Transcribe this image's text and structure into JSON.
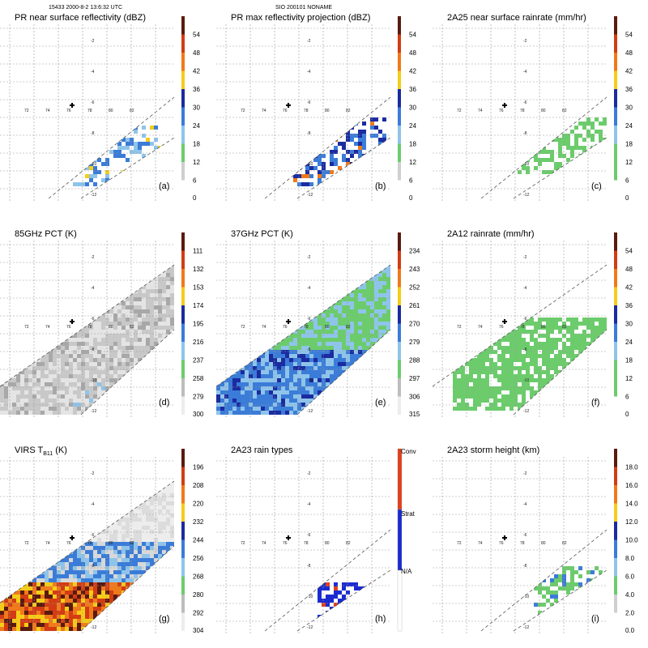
{
  "header": {
    "left": "15433 2000-8-2 13:6:32 UTC",
    "center": "SIO 200101 NONAME"
  },
  "colors": {
    "grid": "#9a9a9a",
    "accent_cross": "#000000"
  },
  "chart_data": [
    {
      "type": "heatmap",
      "title": "PR near surface reflectivity (dBZ)",
      "title_sub": "",
      "title_suffix": "",
      "label": "(a)",
      "colorbar": {
        "ticks": [
          "54",
          "48",
          "42",
          "36",
          "30",
          "24",
          "18",
          "12",
          "6",
          "0"
        ],
        "colors": [
          "#5a1a10",
          "#d23c14",
          "#ef7a1c",
          "#f5cd18",
          "#1b2ba0",
          "#3b7cd8",
          "#8fc4ea",
          "#6ccc6c",
          "#cfcfcf",
          "#ffffff"
        ]
      },
      "lon_ticks": [
        "72",
        "74",
        "76",
        "78",
        "80",
        "82"
      ],
      "lat_ticks": [
        "-2",
        "-4",
        "-6",
        "-8",
        "-10",
        "-12"
      ],
      "swath": "narrow",
      "field": "reflect"
    },
    {
      "type": "heatmap",
      "title": "PR max reflectivity projection (dBZ)",
      "title_sub": "",
      "title_suffix": "",
      "label": "(b)",
      "colorbar": {
        "ticks": [
          "54",
          "48",
          "42",
          "36",
          "30",
          "24",
          "18",
          "12",
          "6",
          "0"
        ],
        "colors": [
          "#5a1a10",
          "#d23c14",
          "#ef7a1c",
          "#f5cd18",
          "#1b2ba0",
          "#3b7cd8",
          "#8fc4ea",
          "#6ccc6c",
          "#cfcfcf",
          "#ffffff"
        ]
      },
      "lon_ticks": [
        "72",
        "74",
        "76",
        "78",
        "80",
        "82"
      ],
      "lat_ticks": [
        "-2",
        "-4",
        "-6",
        "-8",
        "-10",
        "-12"
      ],
      "swath": "narrow",
      "field": "maxref"
    },
    {
      "type": "heatmap",
      "title": "2A25 near surface rainrate (mm/hr)",
      "title_sub": "",
      "title_suffix": "",
      "label": "(c)",
      "colorbar": {
        "ticks": [
          "54",
          "48",
          "42",
          "36",
          "30",
          "24",
          "18",
          "12",
          "6",
          "0"
        ],
        "colors": [
          "#5a1a10",
          "#d23c14",
          "#ef7a1c",
          "#f5cd18",
          "#1b2ba0",
          "#3b7cd8",
          "#8fc4ea",
          "#6ccc6c",
          "#6ccc6c",
          "#ffffff"
        ]
      },
      "lon_ticks": [
        "72",
        "74",
        "76",
        "78",
        "80",
        "82"
      ],
      "lat_ticks": [
        "-2",
        "-4",
        "-6",
        "-8",
        "-10",
        "-12"
      ],
      "swath": "narrow",
      "field": "rainlight"
    },
    {
      "type": "heatmap",
      "title": "85GHz PCT (K)",
      "title_sub": "",
      "title_suffix": "",
      "label": "(d)",
      "colorbar": {
        "ticks": [
          "111",
          "132",
          "153",
          "174",
          "195",
          "216",
          "237",
          "258",
          "279",
          "300"
        ],
        "colors": [
          "#5a1a10",
          "#d23c14",
          "#ef7a1c",
          "#f5cd18",
          "#1b2ba0",
          "#3b7cd8",
          "#8fc4ea",
          "#6ccc6c",
          "#bdbdbd",
          "#ededed"
        ]
      },
      "lon_ticks": [
        "72",
        "74",
        "76",
        "78",
        "80",
        "82"
      ],
      "lat_ticks": [
        "-2",
        "-4",
        "-6",
        "-8",
        "-10",
        "-12"
      ],
      "swath": "wide",
      "field": "pct85"
    },
    {
      "type": "heatmap",
      "title": "37GHz PCT (K)",
      "title_sub": "",
      "title_suffix": "",
      "label": "(e)",
      "colorbar": {
        "ticks": [
          "234",
          "243",
          "252",
          "261",
          "270",
          "279",
          "288",
          "297",
          "306",
          "315"
        ],
        "colors": [
          "#5a1a10",
          "#d23c14",
          "#ef7a1c",
          "#f5cd18",
          "#1b2ba0",
          "#3b7cd8",
          "#8fc4ea",
          "#6ccc6c",
          "#bdbdbd",
          "#ededed"
        ]
      },
      "lon_ticks": [
        "72",
        "74",
        "76",
        "78",
        "80",
        "82"
      ],
      "lat_ticks": [
        "-2",
        "-4",
        "-6",
        "-8",
        "-10",
        "-12"
      ],
      "swath": "wide",
      "field": "pct37"
    },
    {
      "type": "heatmap",
      "title": "2A12 rainrate (mm/hr)",
      "title_sub": "",
      "title_suffix": "",
      "label": "(f)",
      "colorbar": {
        "ticks": [
          "54",
          "48",
          "42",
          "36",
          "30",
          "24",
          "18",
          "12",
          "6",
          "0"
        ],
        "colors": [
          "#5a1a10",
          "#d23c14",
          "#ef7a1c",
          "#f5cd18",
          "#1b2ba0",
          "#3b7cd8",
          "#8fc4ea",
          "#6ccc6c",
          "#6ccc6c",
          "#ffffff"
        ]
      },
      "lon_ticks": [
        "72",
        "74",
        "76",
        "78",
        "80",
        "82"
      ],
      "lat_ticks": [
        "-2",
        "-4",
        "-6",
        "-8",
        "-10",
        "-12"
      ],
      "swath": "wide",
      "field": "rain2a12"
    },
    {
      "type": "heatmap",
      "title": "VIRS T",
      "title_sub": "B11",
      "title_suffix": " (K)",
      "label": "(g)",
      "colorbar": {
        "ticks": [
          "196",
          "208",
          "220",
          "232",
          "244",
          "256",
          "268",
          "280",
          "292",
          "304"
        ],
        "colors": [
          "#5a1a10",
          "#d23c14",
          "#ef7a1c",
          "#f5cd18",
          "#1b2ba0",
          "#3b7cd8",
          "#8fc4ea",
          "#6ccc6c",
          "#bdbdbd",
          "#ededed"
        ]
      },
      "lon_ticks": [
        "72",
        "74",
        "76",
        "78",
        "80",
        "82"
      ],
      "lat_ticks": [
        "-2",
        "-4",
        "-6",
        "-8",
        "-10",
        "-12"
      ],
      "swath": "wide",
      "field": "virs"
    },
    {
      "type": "heatmap",
      "title": "2A23 rain types",
      "title_sub": "",
      "title_suffix": "",
      "label": "(h)",
      "colorbar": {
        "ticks": [
          "Conv",
          "Strat",
          "N/A"
        ],
        "categorical": true,
        "colors": [
          "#e0401c",
          "#1b2bd0",
          "#ffffff"
        ]
      },
      "lon_ticks": [
        "72",
        "74",
        "76",
        "78",
        "80",
        "82"
      ],
      "lat_ticks": [
        "-2",
        "-4",
        "-6",
        "-8",
        "-10",
        "-12"
      ],
      "swath": "narrow",
      "field": "raintype"
    },
    {
      "type": "heatmap",
      "title": "2A23 storm height (km)",
      "title_sub": "",
      "title_suffix": "",
      "label": "(i)",
      "colorbar": {
        "ticks": [
          "18.0",
          "16.0",
          "14.0",
          "12.0",
          "10.0",
          "8.0",
          "6.0",
          "4.0",
          "2.0",
          "0.0"
        ],
        "colors": [
          "#5a1a10",
          "#d23c14",
          "#ef7a1c",
          "#f5cd18",
          "#1b2ba0",
          "#3b7cd8",
          "#8fc4ea",
          "#6ccc6c",
          "#cfcfcf",
          "#ffffff"
        ]
      },
      "lon_ticks": [
        "72",
        "74",
        "76",
        "78",
        "80",
        "82"
      ],
      "lat_ticks": [
        "-2",
        "-4",
        "-6",
        "-8",
        "-10",
        "-12"
      ],
      "swath": "narrow",
      "field": "height"
    }
  ]
}
